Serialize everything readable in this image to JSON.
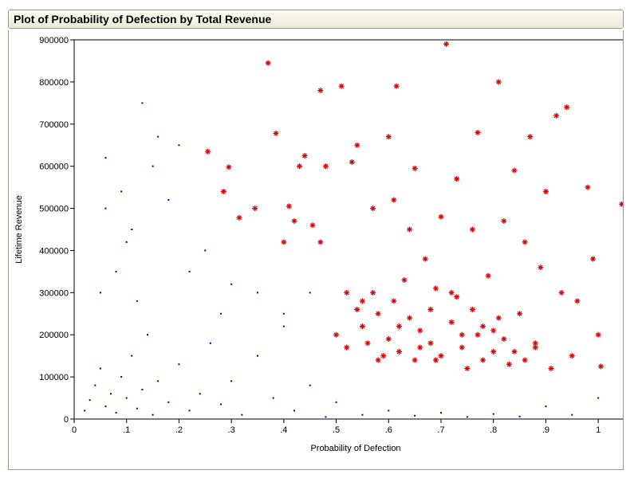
{
  "window": {
    "title": "Plot of Probability of Defection by Total Revenue"
  },
  "chart_data": {
    "type": "scatter",
    "title": "Plot of Probability of Defection by Total Revenue",
    "xlabel": "Probability of Defection",
    "ylabel": "Lifetime Revenue",
    "xlim": [
      0,
      1.05
    ],
    "ylim": [
      0,
      900000
    ],
    "x_ticks": [
      0,
      0.1,
      0.2,
      0.3,
      0.4,
      0.5,
      0.6,
      0.7,
      0.8,
      0.9,
      1.0
    ],
    "x_tick_labels": [
      "0",
      ".1",
      ".2",
      ".3",
      ".4",
      ".5",
      ".6",
      ".7",
      ".8",
      ".9",
      "1"
    ],
    "y_ticks": [
      0,
      100000,
      200000,
      300000,
      400000,
      500000,
      600000,
      700000,
      800000,
      900000
    ],
    "y_tick_labels": [
      "0",
      "100000",
      "200000",
      "300000",
      "400000",
      "500000",
      "600000",
      "700000",
      "800000",
      "900000"
    ],
    "grid": false,
    "legend": "none",
    "series": [
      {
        "marker": "dot",
        "color": "#0000cc",
        "points": [
          [
            0.02,
            20000
          ],
          [
            0.03,
            45000
          ],
          [
            0.04,
            80000
          ],
          [
            0.05,
            120000
          ],
          [
            0.06,
            30000
          ],
          [
            0.07,
            60000
          ],
          [
            0.08,
            15000
          ],
          [
            0.09,
            100000
          ],
          [
            0.1,
            50000
          ],
          [
            0.11,
            150000
          ],
          [
            0.12,
            25000
          ],
          [
            0.13,
            70000
          ],
          [
            0.14,
            200000
          ],
          [
            0.15,
            10000
          ],
          [
            0.16,
            90000
          ],
          [
            0.18,
            40000
          ],
          [
            0.2,
            130000
          ],
          [
            0.22,
            20000
          ],
          [
            0.24,
            60000
          ],
          [
            0.26,
            180000
          ],
          [
            0.28,
            35000
          ],
          [
            0.3,
            90000
          ],
          [
            0.32,
            10000
          ],
          [
            0.35,
            150000
          ],
          [
            0.38,
            50000
          ],
          [
            0.4,
            250000
          ],
          [
            0.42,
            20000
          ],
          [
            0.45,
            80000
          ],
          [
            0.48,
            5000
          ],
          [
            0.5,
            40000
          ],
          [
            0.55,
            10000
          ],
          [
            0.6,
            20000
          ],
          [
            0.65,
            8000
          ],
          [
            0.7,
            15000
          ],
          [
            0.75,
            5000
          ],
          [
            0.8,
            12000
          ],
          [
            0.85,
            6000
          ],
          [
            0.9,
            30000
          ],
          [
            0.95,
            10000
          ],
          [
            1.0,
            50000
          ],
          [
            0.05,
            300000
          ],
          [
            0.08,
            350000
          ],
          [
            0.1,
            420000
          ],
          [
            0.12,
            280000
          ],
          [
            0.06,
            500000
          ],
          [
            0.09,
            540000
          ],
          [
            0.13,
            750000
          ],
          [
            0.15,
            600000
          ],
          [
            0.16,
            670000
          ],
          [
            0.2,
            650000
          ],
          [
            0.18,
            520000
          ],
          [
            0.25,
            400000
          ],
          [
            0.3,
            320000
          ],
          [
            0.35,
            300000
          ],
          [
            0.4,
            220000
          ],
          [
            0.45,
            300000
          ],
          [
            0.06,
            620000
          ],
          [
            0.11,
            450000
          ],
          [
            0.22,
            350000
          ],
          [
            0.28,
            250000
          ]
        ]
      },
      {
        "marker": "asterisk",
        "color": "#dd0000",
        "points": [
          [
            0.255,
            635000
          ],
          [
            0.285,
            540000
          ],
          [
            0.295,
            598000
          ],
          [
            0.315,
            478000
          ],
          [
            0.345,
            500000
          ],
          [
            0.37,
            845000
          ],
          [
            0.385,
            678000
          ],
          [
            0.4,
            420000
          ],
          [
            0.41,
            505000
          ],
          [
            0.42,
            470000
          ],
          [
            0.43,
            600000
          ],
          [
            0.44,
            625000
          ],
          [
            0.455,
            460000
          ],
          [
            0.47,
            780000
          ],
          [
            0.47,
            420000
          ],
          [
            0.48,
            600000
          ],
          [
            0.5,
            200000
          ],
          [
            0.51,
            790000
          ],
          [
            0.52,
            300000
          ],
          [
            0.53,
            610000
          ],
          [
            0.54,
            650000
          ],
          [
            0.55,
            280000
          ],
          [
            0.56,
            180000
          ],
          [
            0.57,
            500000
          ],
          [
            0.58,
            250000
          ],
          [
            0.59,
            150000
          ],
          [
            0.6,
            670000
          ],
          [
            0.61,
            520000
          ],
          [
            0.615,
            790000
          ],
          [
            0.62,
            220000
          ],
          [
            0.63,
            330000
          ],
          [
            0.64,
            450000
          ],
          [
            0.65,
            595000
          ],
          [
            0.66,
            170000
          ],
          [
            0.67,
            380000
          ],
          [
            0.68,
            260000
          ],
          [
            0.69,
            140000
          ],
          [
            0.7,
            480000
          ],
          [
            0.71,
            890000
          ],
          [
            0.72,
            300000
          ],
          [
            0.73,
            570000
          ],
          [
            0.74,
            200000
          ],
          [
            0.75,
            120000
          ],
          [
            0.76,
            450000
          ],
          [
            0.77,
            680000
          ],
          [
            0.78,
            220000
          ],
          [
            0.79,
            340000
          ],
          [
            0.8,
            160000
          ],
          [
            0.81,
            800000
          ],
          [
            0.82,
            470000
          ],
          [
            0.83,
            130000
          ],
          [
            0.84,
            590000
          ],
          [
            0.85,
            250000
          ],
          [
            0.86,
            420000
          ],
          [
            0.87,
            670000
          ],
          [
            0.88,
            180000
          ],
          [
            0.89,
            360000
          ],
          [
            0.9,
            540000
          ],
          [
            0.91,
            120000
          ],
          [
            0.92,
            720000
          ],
          [
            0.93,
            300000
          ],
          [
            0.94,
            740000
          ],
          [
            0.95,
            150000
          ],
          [
            0.96,
            280000
          ],
          [
            0.98,
            550000
          ],
          [
            0.99,
            380000
          ],
          [
            1.0,
            200000
          ],
          [
            1.005,
            125000
          ],
          [
            1.045,
            510000
          ],
          [
            0.52,
            170000
          ],
          [
            0.55,
            220000
          ],
          [
            0.58,
            140000
          ],
          [
            0.6,
            190000
          ],
          [
            0.62,
            160000
          ],
          [
            0.64,
            240000
          ],
          [
            0.66,
            210000
          ],
          [
            0.68,
            180000
          ],
          [
            0.7,
            150000
          ],
          [
            0.72,
            230000
          ],
          [
            0.74,
            170000
          ],
          [
            0.76,
            260000
          ],
          [
            0.78,
            140000
          ],
          [
            0.8,
            210000
          ],
          [
            0.82,
            190000
          ],
          [
            0.84,
            160000
          ],
          [
            0.86,
            140000
          ],
          [
            0.88,
            170000
          ],
          [
            0.54,
            260000
          ],
          [
            0.57,
            300000
          ],
          [
            0.61,
            280000
          ],
          [
            0.65,
            140000
          ],
          [
            0.69,
            310000
          ],
          [
            0.73,
            290000
          ],
          [
            0.77,
            200000
          ],
          [
            0.81,
            240000
          ]
        ]
      }
    ]
  }
}
